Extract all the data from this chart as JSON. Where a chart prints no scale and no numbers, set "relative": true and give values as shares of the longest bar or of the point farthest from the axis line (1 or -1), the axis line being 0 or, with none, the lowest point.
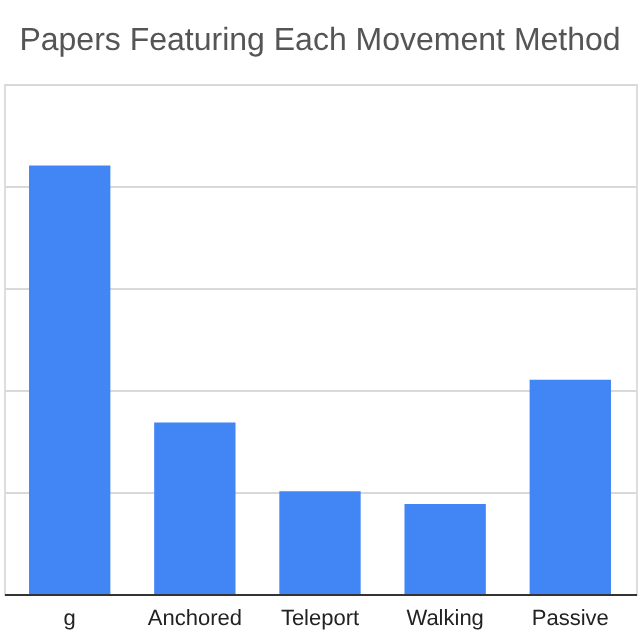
{
  "chart_data": {
    "type": "bar",
    "title": "Papers Featuring Each Movement Method",
    "categories": [
      "g",
      "Anchored",
      "Teleport",
      "Walking",
      "Passive"
    ],
    "values": [
      1,
      0.4,
      0.24,
      0.21,
      0.5
    ],
    "color": "#4285f4",
    "relative": true,
    "grid": "y"
  }
}
